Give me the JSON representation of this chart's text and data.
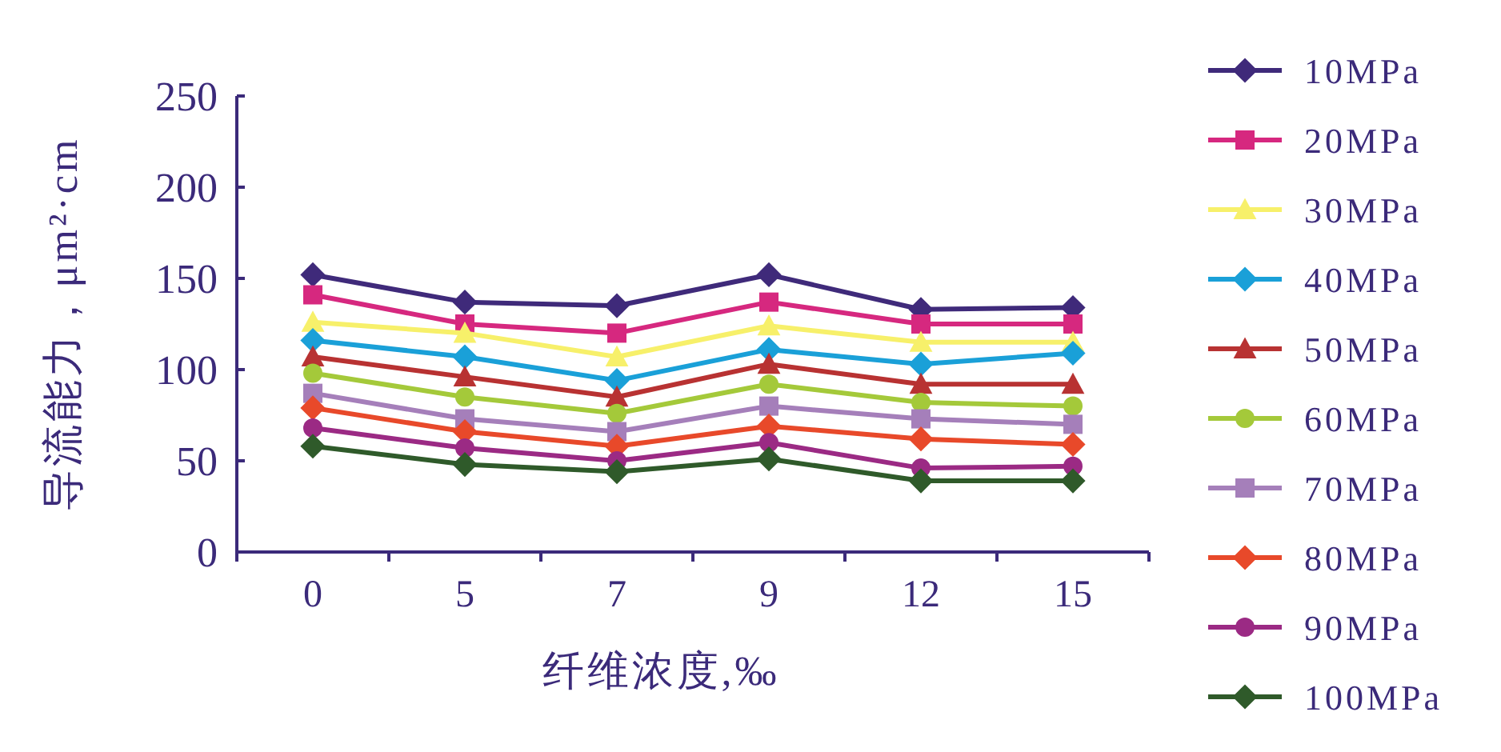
{
  "chart_data": {
    "type": "line",
    "xlabel": "纤维浓度,‰",
    "ylabel": "导流能力，μm²·cm",
    "categories": [
      "0",
      "5",
      "7",
      "9",
      "12",
      "15"
    ],
    "ylim": [
      0,
      250
    ],
    "yticks": [
      0,
      50,
      100,
      150,
      200,
      250
    ],
    "legend": "right",
    "grid": false,
    "series": [
      {
        "name": "10MPa",
        "color": "#3f2a7a",
        "marker": "diamond",
        "values": [
          152,
          137,
          135,
          152,
          133,
          134
        ]
      },
      {
        "name": "20MPa",
        "color": "#d6287f",
        "marker": "square",
        "values": [
          141,
          125,
          120,
          137,
          125,
          125
        ]
      },
      {
        "name": "30MPa",
        "color": "#f7f06a",
        "marker": "triangle",
        "values": [
          126,
          120,
          107,
          124,
          115,
          115
        ]
      },
      {
        "name": "40MPa",
        "color": "#1aa0d8",
        "marker": "diamond",
        "values": [
          116,
          107,
          94,
          111,
          103,
          109
        ]
      },
      {
        "name": "50MPa",
        "color": "#b83232",
        "marker": "triangle",
        "values": [
          107,
          96,
          85,
          103,
          92,
          92
        ]
      },
      {
        "name": "60MPa",
        "color": "#a4c93a",
        "marker": "circle",
        "values": [
          98,
          85,
          76,
          92,
          82,
          80
        ]
      },
      {
        "name": "70MPa",
        "color": "#a57fba",
        "marker": "square",
        "values": [
          87,
          73,
          66,
          80,
          73,
          70
        ]
      },
      {
        "name": "80MPa",
        "color": "#e8492a",
        "marker": "diamond",
        "values": [
          79,
          66,
          58,
          69,
          62,
          59
        ]
      },
      {
        "name": "90MPa",
        "color": "#9b2a84",
        "marker": "circle",
        "values": [
          68,
          57,
          50,
          60,
          46,
          47
        ]
      },
      {
        "name": "100MPa",
        "color": "#2f5a2a",
        "marker": "diamond",
        "values": [
          58,
          48,
          44,
          51,
          39,
          39
        ]
      }
    ]
  }
}
